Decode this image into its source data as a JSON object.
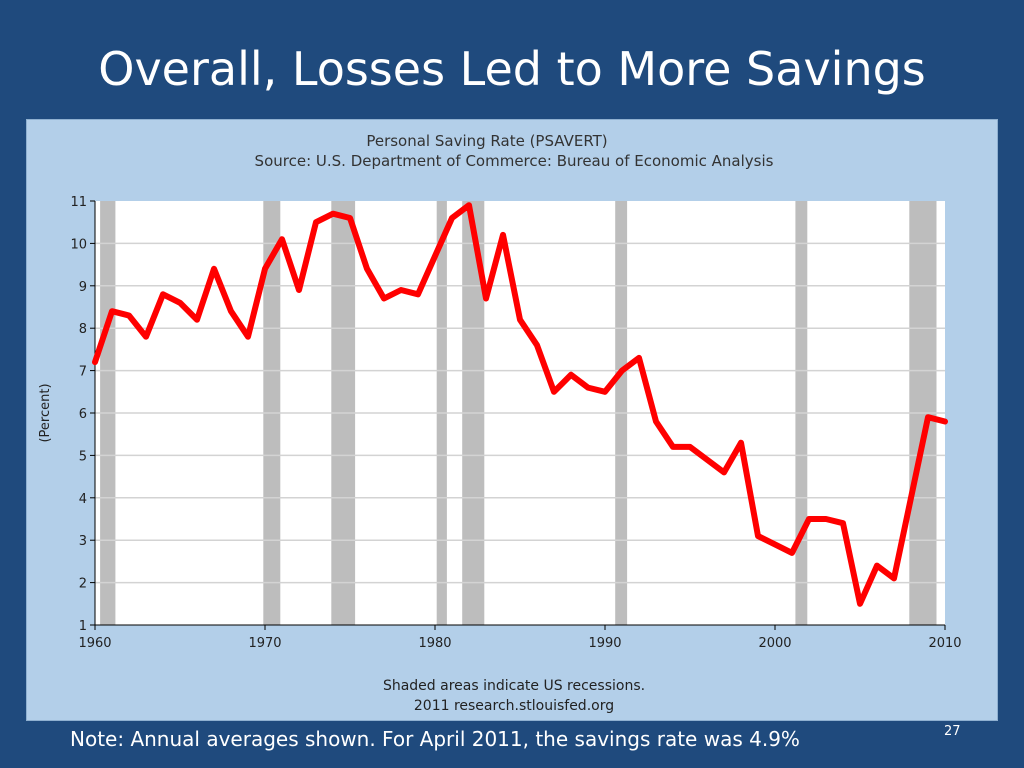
{
  "slide": {
    "title": "Overall, Losses Led to More Savings",
    "note": "Note: Annual averages shown. For April 2011, the savings rate was 4.9%",
    "page_number": "27"
  },
  "colors": {
    "background": "#1f4a7d",
    "chart_frame": "#b3cfe9",
    "plot_area": "#ffffff",
    "recession": "#bdbdbd",
    "line": "#ff0000",
    "grid": "#d3d3d3"
  },
  "chart_data": {
    "type": "line",
    "title": "Personal Saving Rate (PSAVERT)",
    "subtitle": "Source: U.S. Department of Commerce: Bureau of Economic Analysis",
    "xlabel": "",
    "ylabel": "(Percent)",
    "xlim": [
      1960,
      2010
    ],
    "ylim": [
      1,
      11
    ],
    "x_ticks": [
      1960,
      1970,
      1980,
      1990,
      2000,
      2010
    ],
    "y_ticks": [
      1,
      2,
      3,
      4,
      5,
      6,
      7,
      8,
      9,
      10,
      11
    ],
    "grid": true,
    "caption_line1": "Shaded areas indicate US recessions.",
    "caption_line2": "2011 research.stlouisfed.org",
    "recessions": [
      [
        1960.3,
        1961.2
      ],
      [
        1969.9,
        1970.9
      ],
      [
        1973.9,
        1975.3
      ],
      [
        1980.1,
        1980.7
      ],
      [
        1981.6,
        1982.9
      ],
      [
        1990.6,
        1991.3
      ],
      [
        2001.2,
        2001.9
      ],
      [
        2007.9,
        2009.5
      ]
    ],
    "series": [
      {
        "x": [
          1960,
          1961,
          1962,
          1963,
          1964,
          1965,
          1966,
          1967,
          1968,
          1969,
          1970,
          1971,
          1972,
          1973,
          1974,
          1975,
          1976,
          1977,
          1978,
          1979,
          1980,
          1981,
          1982,
          1983,
          1984,
          1985,
          1986,
          1987,
          1988,
          1989,
          1990,
          1991,
          1992,
          1993,
          1994,
          1995,
          1996,
          1997,
          1998,
          1999,
          2000,
          2001,
          2002,
          2003,
          2004,
          2005,
          2006,
          2007,
          2008,
          2009,
          2010
        ],
        "values": [
          7.2,
          8.4,
          8.3,
          7.8,
          8.8,
          8.6,
          8.2,
          9.4,
          8.4,
          7.8,
          9.4,
          10.1,
          8.9,
          10.5,
          10.7,
          10.6,
          9.4,
          8.7,
          8.9,
          8.8,
          9.7,
          10.6,
          10.9,
          8.7,
          10.2,
          8.2,
          7.6,
          6.5,
          6.9,
          6.6,
          6.5,
          7.0,
          7.3,
          5.8,
          5.2,
          5.2,
          4.9,
          4.6,
          5.3,
          3.1,
          2.9,
          2.7,
          3.5,
          3.5,
          3.4,
          1.5,
          2.4,
          2.1,
          4.0,
          5.9,
          5.8
        ]
      }
    ]
  }
}
